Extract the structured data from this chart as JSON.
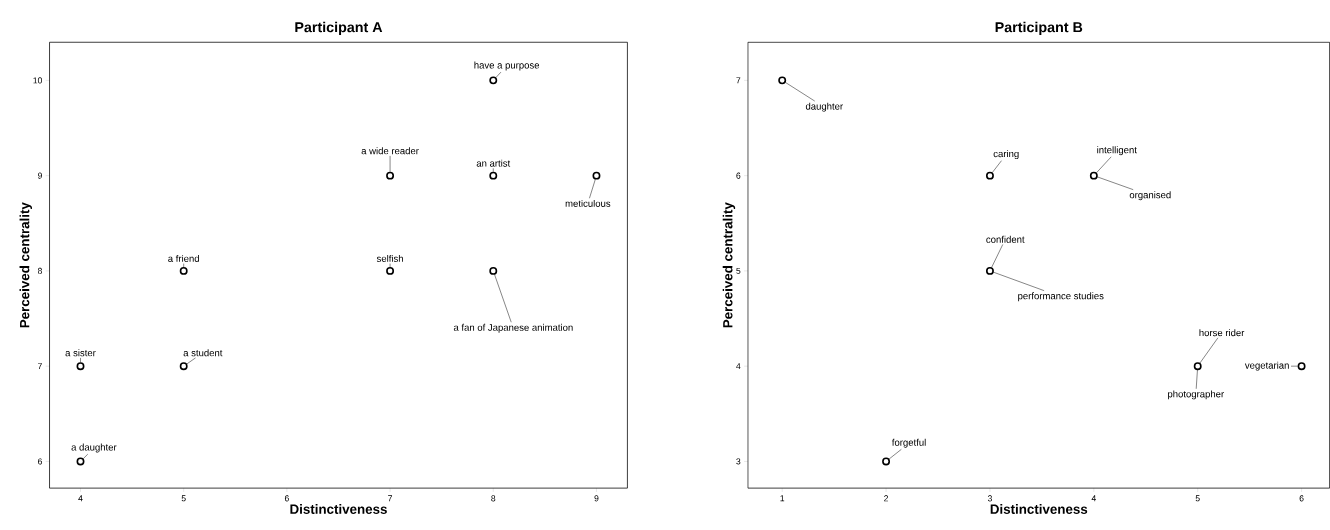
{
  "chart_data": [
    {
      "type": "scatter",
      "title": "Participant A",
      "xlabel": "Distinctiveness",
      "ylabel": "Perceived centrality",
      "xlim": [
        3.7,
        9.3
      ],
      "ylim": [
        5.72,
        10.4
      ],
      "xticks": [
        4,
        5,
        6,
        7,
        8,
        9
      ],
      "yticks": [
        6,
        7,
        8,
        9,
        10
      ],
      "marker": "circle",
      "series": [
        {
          "color": "#000000",
          "x": [
            8,
            7,
            8,
            9,
            5,
            7,
            8,
            4,
            5,
            4
          ],
          "values": [
            10,
            9,
            9,
            9,
            8,
            8,
            8,
            7,
            7,
            6
          ]
        }
      ],
      "annotations": [
        {
          "text": "have a purpose",
          "x": 8,
          "y": 10
        },
        {
          "text": "a wide reader",
          "x": 7,
          "y": 9
        },
        {
          "text": "an artist",
          "x": 8,
          "y": 9
        },
        {
          "text": "meticulous",
          "x": 9,
          "y": 9
        },
        {
          "text": "a friend",
          "x": 5,
          "y": 8
        },
        {
          "text": "selfish",
          "x": 7,
          "y": 8
        },
        {
          "text": "a fan of Japanese animation",
          "x": 8,
          "y": 8
        },
        {
          "text": "a sister",
          "x": 4,
          "y": 7
        },
        {
          "text": "a student",
          "x": 5,
          "y": 7
        },
        {
          "text": "a daughter",
          "x": 4,
          "y": 6
        }
      ]
    },
    {
      "type": "scatter",
      "title": "Participant B",
      "xlabel": "Distinctiveness",
      "ylabel": "Perceived centrality",
      "xlim": [
        0.67,
        6.27
      ],
      "ylim": [
        2.72,
        7.4
      ],
      "xticks": [
        1,
        2,
        3,
        4,
        5,
        6
      ],
      "yticks": [
        3,
        4,
        5,
        6,
        7
      ],
      "marker": "circle",
      "series": [
        {
          "color": "#000000",
          "x": [
            1,
            3,
            4,
            3,
            5,
            6,
            2
          ],
          "values": [
            7,
            6,
            6,
            5,
            4,
            4,
            3
          ]
        }
      ],
      "annotations": [
        {
          "text": "daughter",
          "x": 1,
          "y": 7
        },
        {
          "text": "caring",
          "x": 3,
          "y": 6
        },
        {
          "text": "intelligent",
          "x": 4,
          "y": 6
        },
        {
          "text": "organised",
          "x": 4,
          "y": 6
        },
        {
          "text": "confident",
          "x": 3,
          "y": 5
        },
        {
          "text": "performance studies",
          "x": 3,
          "y": 5
        },
        {
          "text": "horse rider",
          "x": 5,
          "y": 4
        },
        {
          "text": "photographer",
          "x": 5,
          "y": 4
        },
        {
          "text": "vegetarian",
          "x": 6,
          "y": 4
        },
        {
          "text": "forgetful",
          "x": 2,
          "y": 3
        }
      ]
    }
  ]
}
